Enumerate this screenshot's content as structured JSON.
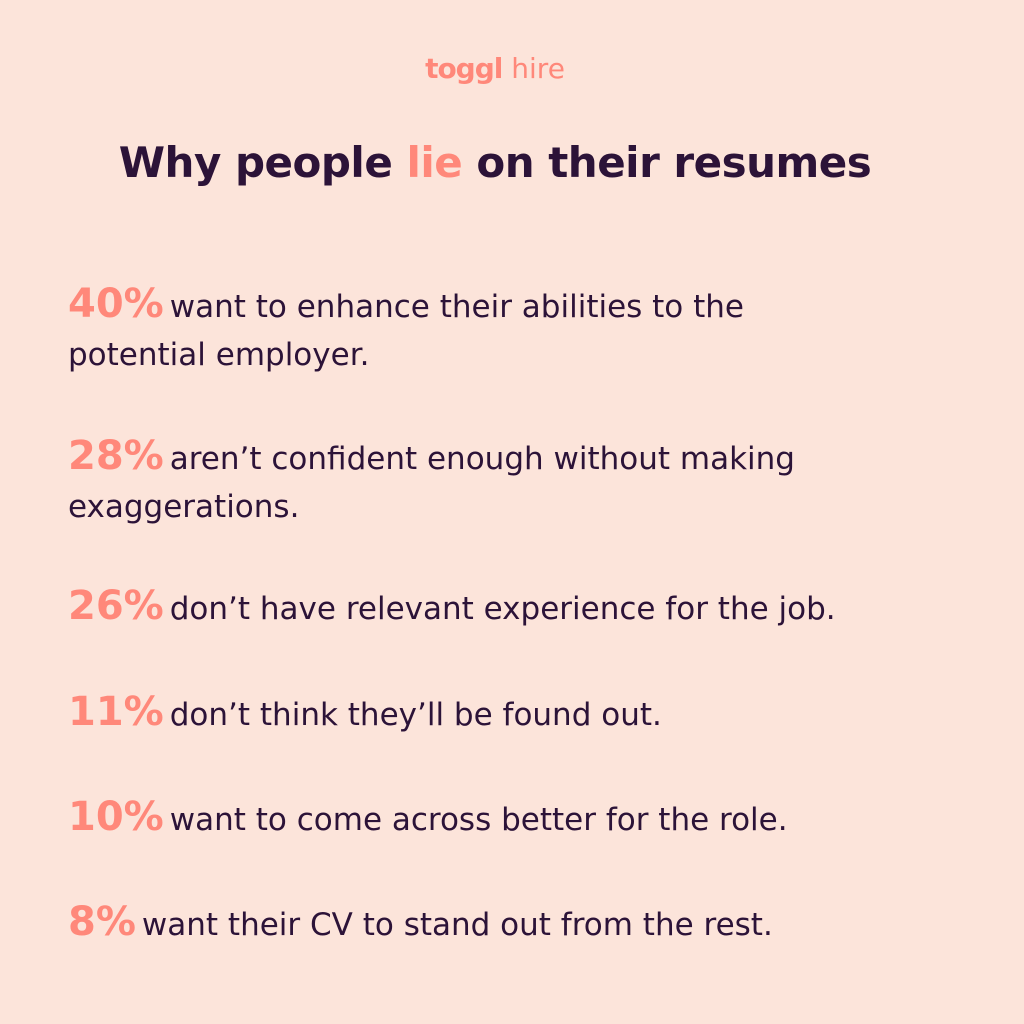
{
  "logo": {
    "brand": "toggl",
    "product": "hire"
  },
  "title": {
    "before": "Why people ",
    "highlight": "lie",
    "after": " on their resumes"
  },
  "colors": {
    "background": "#fce4da",
    "accent": "#ff887a",
    "text": "#2c1338"
  },
  "stats": [
    {
      "percent": "40%",
      "text": "want to enhance their abilities to the potential employer."
    },
    {
      "percent": "28%",
      "text": "aren’t confident enough without making exaggerations."
    },
    {
      "percent": "26%",
      "text": "don’t have relevant experience for the job."
    },
    {
      "percent": "11%",
      "text": "don’t think they’ll be found out."
    },
    {
      "percent": "10%",
      "text": "want to come across better for the role."
    },
    {
      "percent": "8%",
      "text": "want their CV to stand out from the rest."
    }
  ]
}
